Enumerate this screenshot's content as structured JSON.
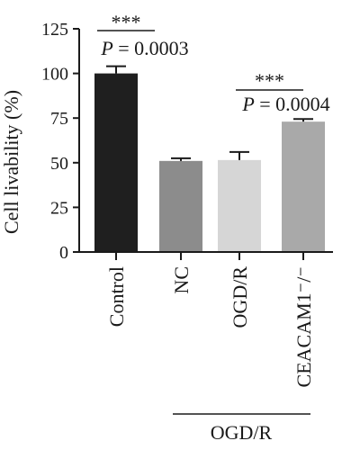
{
  "chart_data": {
    "type": "bar",
    "title": "",
    "xlabel": "",
    "ylabel": "Cell livability (%)",
    "ylim": [
      0,
      125
    ],
    "yticks": [
      0,
      25,
      50,
      75,
      100,
      125
    ],
    "grid": false,
    "categories": [
      "Control",
      "NC",
      "OGD/R",
      "CEACAM1⁻/⁻"
    ],
    "values": [
      100,
      51,
      51.5,
      73
    ],
    "errors": [
      4,
      1.5,
      4.5,
      1.5
    ],
    "bar_colors": [
      "#1f1f1f",
      "#8c8c8c",
      "#d6d6d6",
      "#a9a9a9"
    ],
    "significance": [
      {
        "from": 0,
        "to": 1,
        "stars": "***",
        "text": "P = 0.0003"
      },
      {
        "from": 2,
        "to": 3,
        "stars": "***",
        "text": "P = 0.0004"
      }
    ],
    "group": {
      "label": "OGD/R",
      "from": 1,
      "to": 3
    }
  }
}
